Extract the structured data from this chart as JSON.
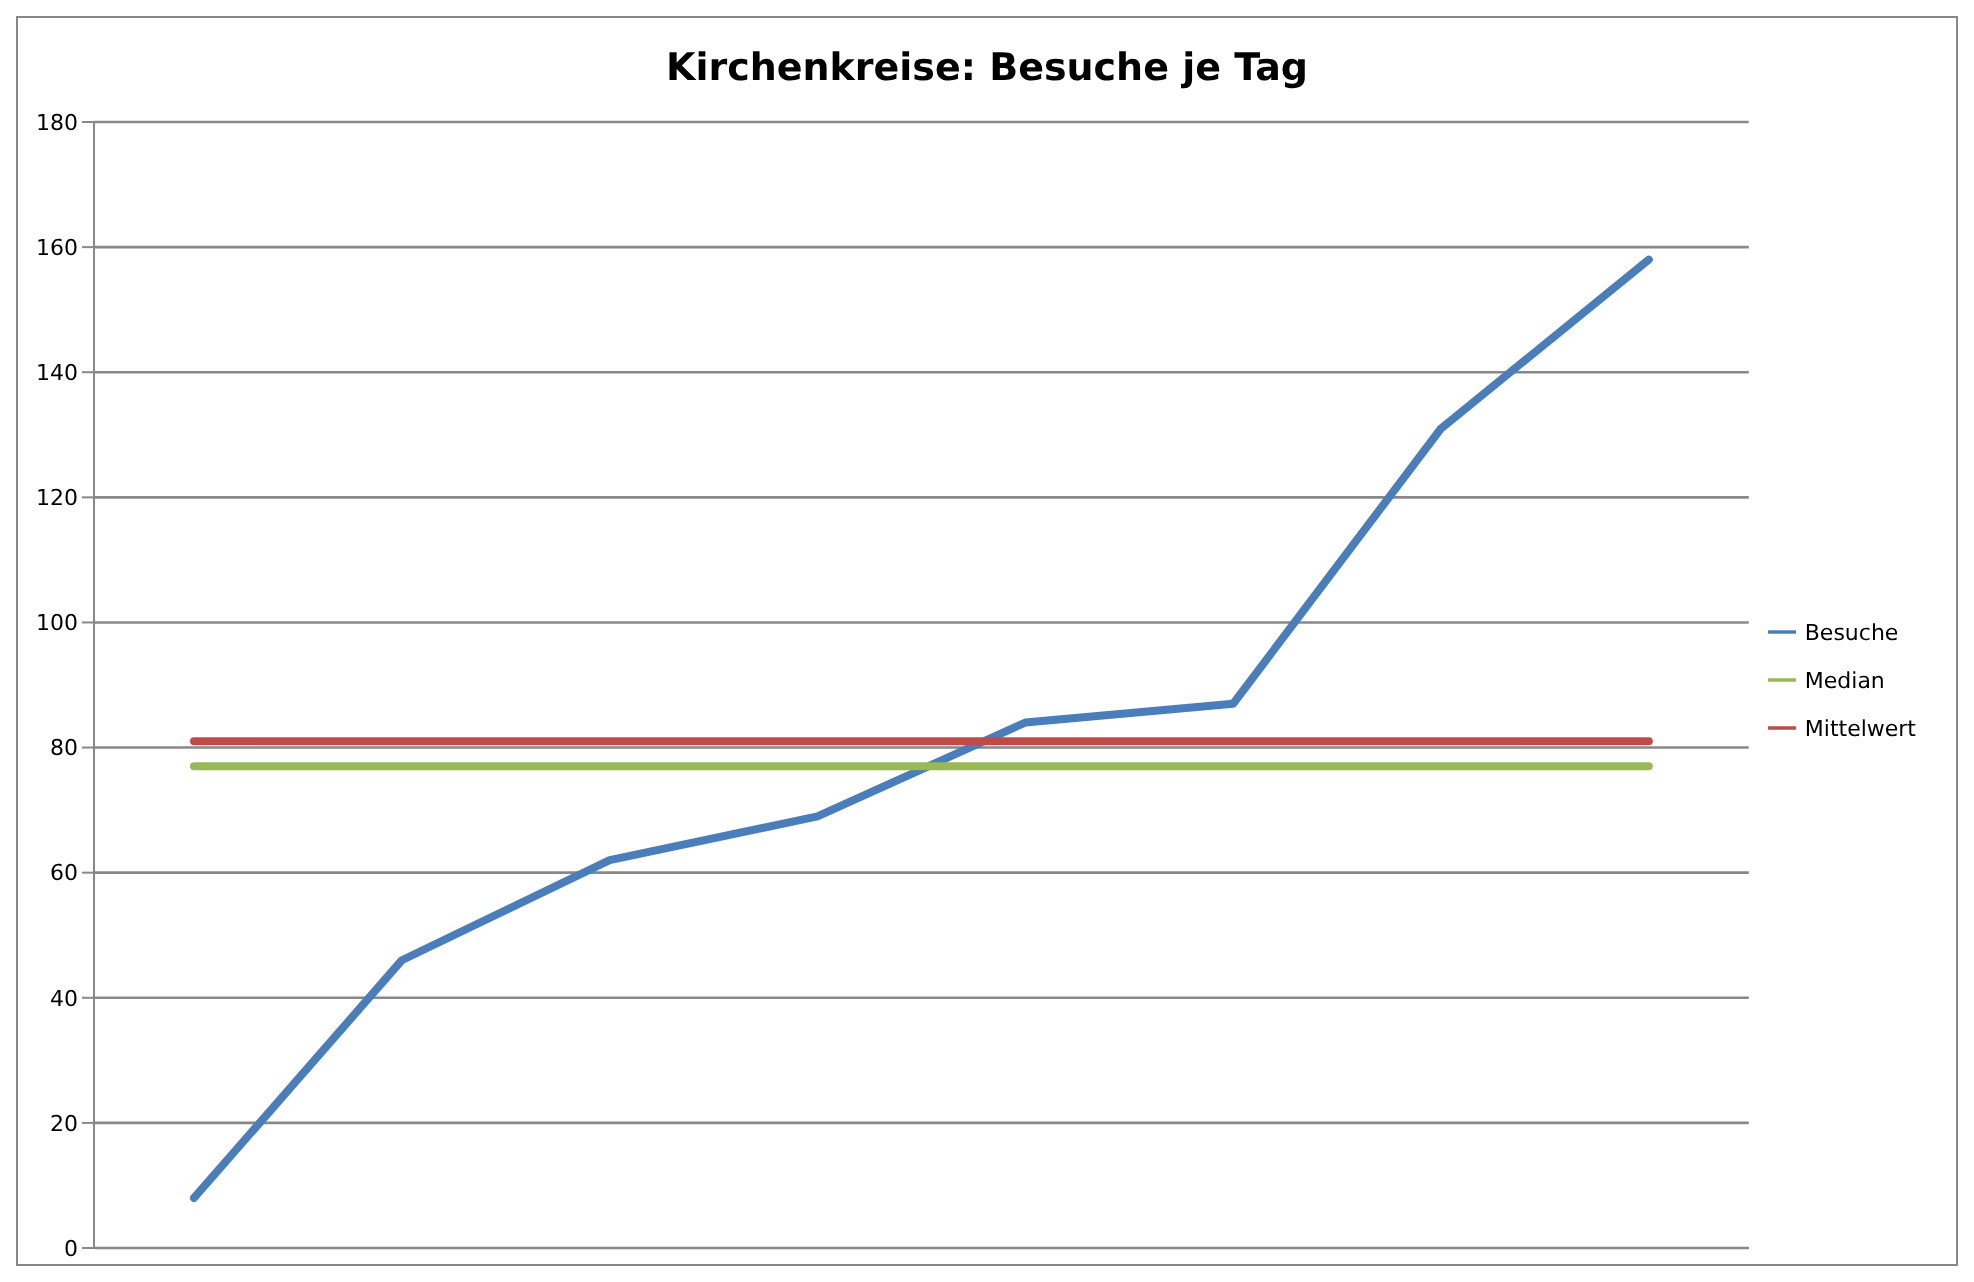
{
  "chart_data": {
    "type": "line",
    "title": "Kirchenkreise: Besuche je Tag",
    "categories": [
      null,
      null,
      null,
      null,
      null,
      null,
      null,
      null
    ],
    "series": [
      {
        "name": "Besuche",
        "color": "#4a7ebb",
        "values": [
          8,
          46,
          62,
          69,
          84,
          87,
          131,
          158
        ]
      },
      {
        "name": "Mittelwert",
        "color": "#be4b48",
        "values": [
          81,
          81,
          81,
          81,
          81,
          81,
          81,
          81
        ]
      },
      {
        "name": "Median",
        "color": "#98b954",
        "values": [
          77,
          77,
          77,
          77,
          77,
          77,
          77,
          77
        ]
      }
    ],
    "ylim": [
      0,
      180
    ],
    "yticks": [
      0,
      20,
      40,
      60,
      80,
      100,
      120,
      140,
      160,
      180
    ],
    "grid": "y",
    "legend": "right",
    "marker": "none",
    "line_style": "solid"
  }
}
